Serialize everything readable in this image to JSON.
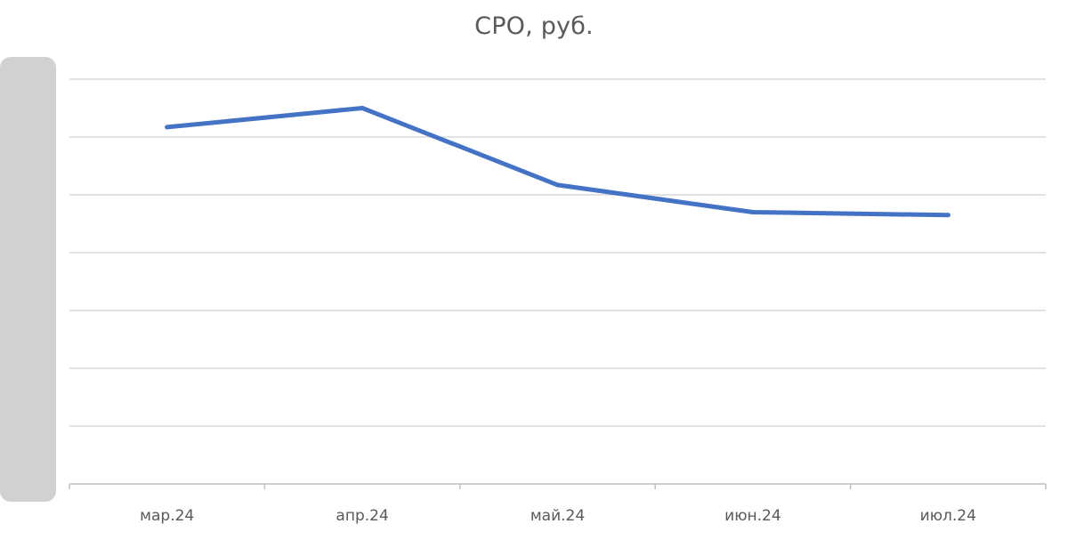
{
  "chart_data": {
    "type": "line",
    "title": "CPO, руб.",
    "xlabel": "",
    "ylabel": "",
    "categories": [
      "мар.24",
      "апр.24",
      "май.24",
      "июн.24",
      "июл.24"
    ],
    "series": [
      {
        "color": "#4472c4",
        "values": [
          617,
          650,
          517,
          470,
          465
        ]
      }
    ],
    "ylim": [
      0,
      700
    ],
    "grid": true,
    "y_tick_labels_hidden": true
  }
}
